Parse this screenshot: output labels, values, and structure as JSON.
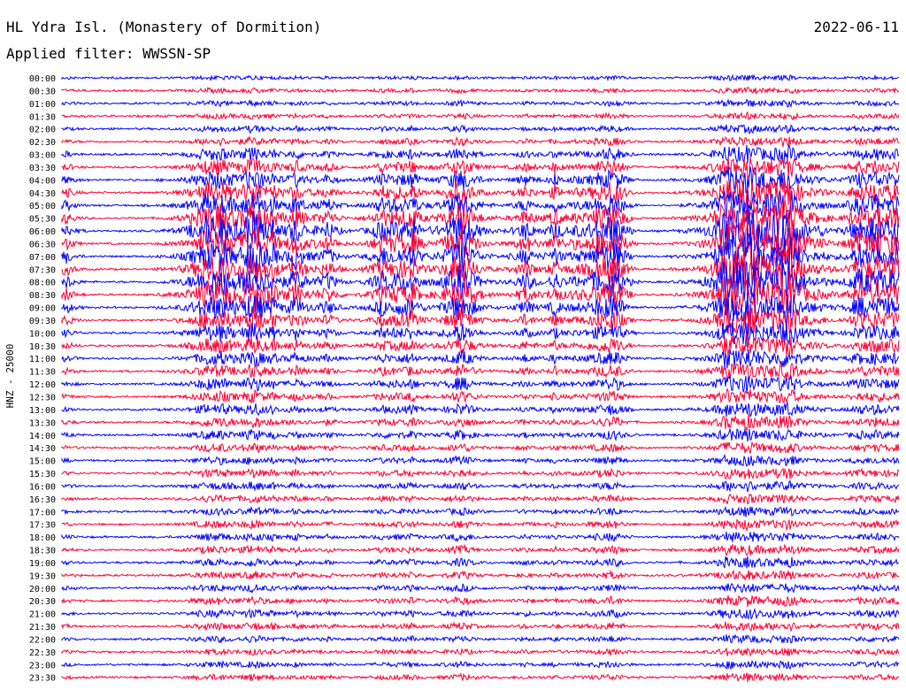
{
  "chart_data": {
    "type": "line",
    "title": "HL Ydra Isl. (Monastery of Dormition)",
    "subtitle": "Applied filter: WWSSN-SP",
    "date": "2022-06-11",
    "ylabel": "HNZ - 25000",
    "grid": false,
    "series_colors": [
      "#0000ff",
      "#ff0033"
    ],
    "row_labels": [
      "00:00",
      "00:30",
      "01:00",
      "01:30",
      "02:00",
      "02:30",
      "03:00",
      "03:30",
      "04:00",
      "04:30",
      "05:00",
      "05:30",
      "06:00",
      "06:30",
      "07:00",
      "07:30",
      "08:00",
      "08:30",
      "09:00",
      "09:30",
      "10:00",
      "10:30",
      "11:00",
      "11:30",
      "12:00",
      "12:30",
      "13:00",
      "13:30",
      "14:00",
      "14:30",
      "15:00",
      "15:30",
      "16:00",
      "16:30",
      "17:00",
      "17:30",
      "18:00",
      "18:30",
      "19:00",
      "19:30",
      "20:00",
      "20:30",
      "21:00",
      "21:30",
      "22:00",
      "22:30",
      "23:00",
      "23:30"
    ],
    "trace_activity": [
      0.08,
      0.1,
      0.12,
      0.12,
      0.15,
      0.2,
      0.35,
      0.45,
      0.55,
      0.65,
      0.7,
      0.85,
      1.0,
      0.95,
      0.9,
      0.9,
      0.95,
      0.9,
      0.75,
      0.6,
      0.5,
      0.45,
      0.4,
      0.35,
      0.35,
      0.3,
      0.3,
      0.28,
      0.25,
      0.22,
      0.2,
      0.22,
      0.2,
      0.18,
      0.18,
      0.2,
      0.2,
      0.2,
      0.2,
      0.18,
      0.18,
      0.2,
      0.2,
      0.18,
      0.15,
      0.14,
      0.15,
      0.15
    ]
  }
}
